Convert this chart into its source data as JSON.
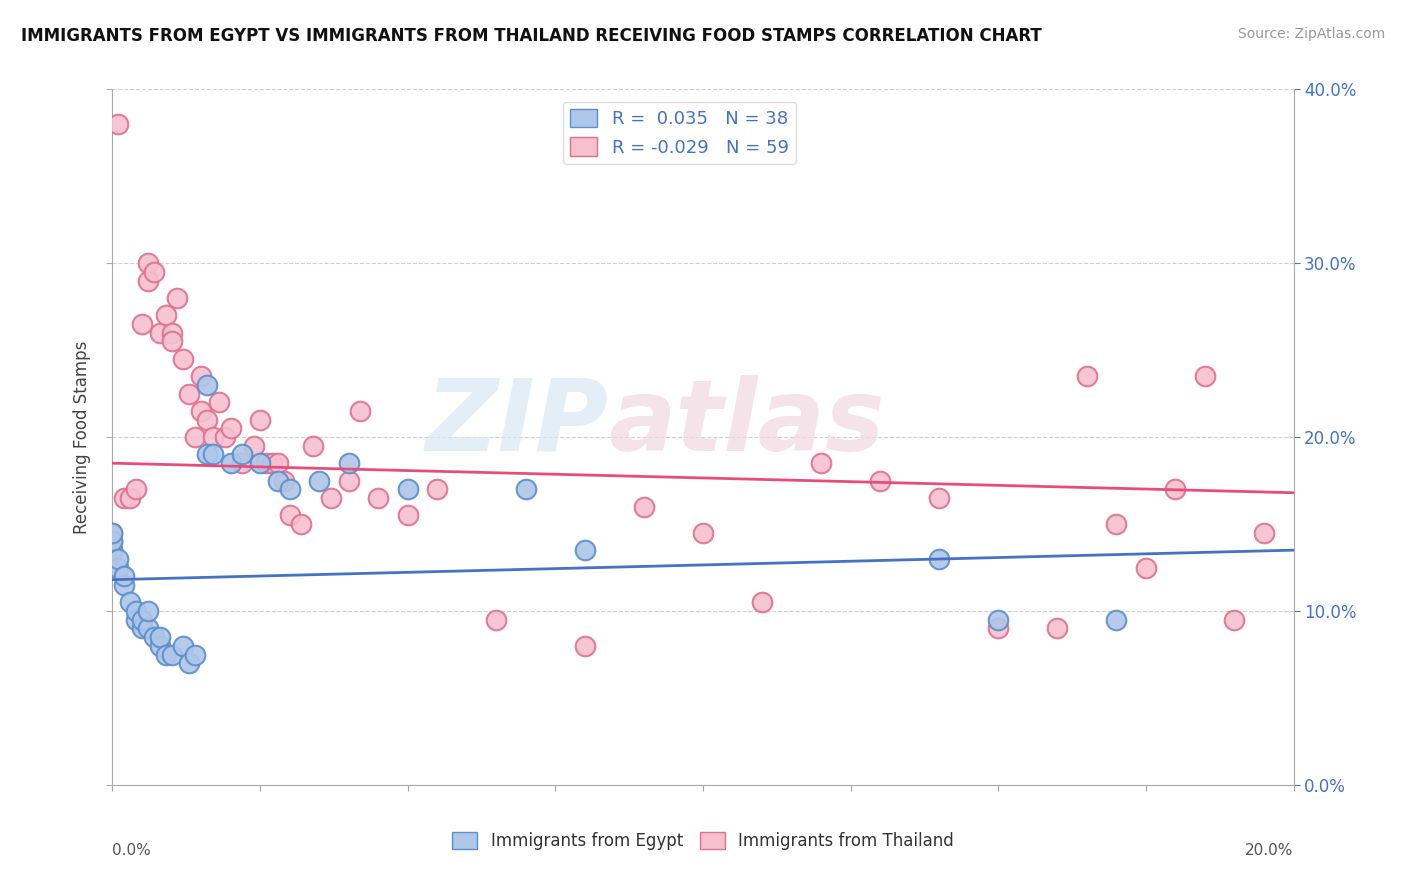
{
  "title": "IMMIGRANTS FROM EGYPT VS IMMIGRANTS FROM THAILAND RECEIVING FOOD STAMPS CORRELATION CHART",
  "source": "Source: ZipAtlas.com",
  "ylabel": "Receiving Food Stamps",
  "x_label_legend1": "Immigrants from Egypt",
  "x_label_legend2": "Immigrants from Thailand",
  "xlim": [
    0.0,
    0.2
  ],
  "ylim": [
    0.0,
    0.4
  ],
  "xticks": [
    0.0,
    0.025,
    0.05,
    0.075,
    0.1,
    0.125,
    0.15,
    0.175,
    0.2
  ],
  "yticks": [
    0.0,
    0.1,
    0.2,
    0.3,
    0.4
  ],
  "ytick_labels_right": [
    "0.0%",
    "10.0%",
    "20.0%",
    "30.0%",
    "40.0%"
  ],
  "R_egypt": 0.035,
  "N_egypt": 38,
  "R_thailand": -0.029,
  "N_thailand": 59,
  "egypt_color": "#aec6e8",
  "egypt_edge_color": "#5b8fcc",
  "egypt_line_color": "#4472c4",
  "thailand_color": "#f5c0d0",
  "thailand_edge_color": "#e07090",
  "thailand_line_color": "#e84d7a",
  "egypt_points_x": [
    0.0,
    0.0,
    0.0,
    0.001,
    0.001,
    0.002,
    0.002,
    0.003,
    0.004,
    0.004,
    0.005,
    0.005,
    0.006,
    0.006,
    0.007,
    0.008,
    0.008,
    0.009,
    0.01,
    0.012,
    0.013,
    0.014,
    0.016,
    0.016,
    0.017,
    0.02,
    0.022,
    0.025,
    0.028,
    0.03,
    0.035,
    0.04,
    0.05,
    0.07,
    0.08,
    0.14,
    0.15,
    0.17
  ],
  "egypt_points_y": [
    0.135,
    0.14,
    0.145,
    0.125,
    0.13,
    0.115,
    0.12,
    0.105,
    0.095,
    0.1,
    0.09,
    0.095,
    0.09,
    0.1,
    0.085,
    0.08,
    0.085,
    0.075,
    0.075,
    0.08,
    0.07,
    0.075,
    0.23,
    0.19,
    0.19,
    0.185,
    0.19,
    0.185,
    0.175,
    0.17,
    0.175,
    0.185,
    0.17,
    0.17,
    0.135,
    0.13,
    0.095,
    0.095
  ],
  "thailand_points_x": [
    0.0,
    0.0,
    0.0,
    0.001,
    0.002,
    0.003,
    0.004,
    0.005,
    0.006,
    0.006,
    0.007,
    0.008,
    0.009,
    0.01,
    0.01,
    0.011,
    0.012,
    0.013,
    0.014,
    0.015,
    0.015,
    0.016,
    0.017,
    0.018,
    0.019,
    0.02,
    0.022,
    0.024,
    0.025,
    0.026,
    0.027,
    0.028,
    0.029,
    0.03,
    0.032,
    0.034,
    0.037,
    0.04,
    0.042,
    0.045,
    0.05,
    0.055,
    0.065,
    0.08,
    0.09,
    0.1,
    0.11,
    0.12,
    0.13,
    0.14,
    0.15,
    0.16,
    0.165,
    0.17,
    0.175,
    0.18,
    0.185,
    0.19,
    0.195
  ],
  "thailand_points_y": [
    0.135,
    0.14,
    0.145,
    0.38,
    0.165,
    0.165,
    0.17,
    0.265,
    0.3,
    0.29,
    0.295,
    0.26,
    0.27,
    0.26,
    0.255,
    0.28,
    0.245,
    0.225,
    0.2,
    0.235,
    0.215,
    0.21,
    0.2,
    0.22,
    0.2,
    0.205,
    0.185,
    0.195,
    0.21,
    0.185,
    0.185,
    0.185,
    0.175,
    0.155,
    0.15,
    0.195,
    0.165,
    0.175,
    0.215,
    0.165,
    0.155,
    0.17,
    0.095,
    0.08,
    0.16,
    0.145,
    0.105,
    0.185,
    0.175,
    0.165,
    0.09,
    0.09,
    0.235,
    0.15,
    0.125,
    0.17,
    0.235,
    0.095,
    0.145
  ],
  "watermark_zip": "ZIP",
  "watermark_atlas": "atlas",
  "background_color": "#ffffff",
  "grid_color": "#d0d0d0",
  "right_axis_color": "#4472c4",
  "legend_top_label_color": "#4472c4"
}
